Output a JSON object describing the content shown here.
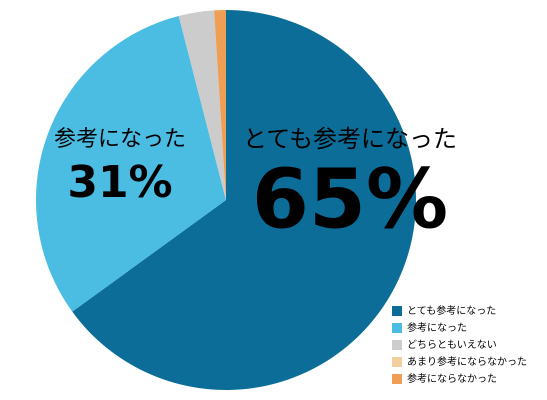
{
  "chart_data": {
    "type": "pie",
    "categories": [
      "とても参考になった",
      "参考になった",
      "どちらともいえない",
      "あまり参考にならなかった",
      "参考にならなかった"
    ],
    "values": [
      65,
      31,
      3,
      0,
      1
    ],
    "value_labels": [
      "65%",
      "31%",
      null,
      null,
      null
    ],
    "colors": [
      "#0b6d98",
      "#4bbde3",
      "#cccccc",
      "#f3cf9f",
      "#ef9f55"
    ],
    "start_angle": 0,
    "direction": "clockwise",
    "legend": "bottom-right"
  }
}
